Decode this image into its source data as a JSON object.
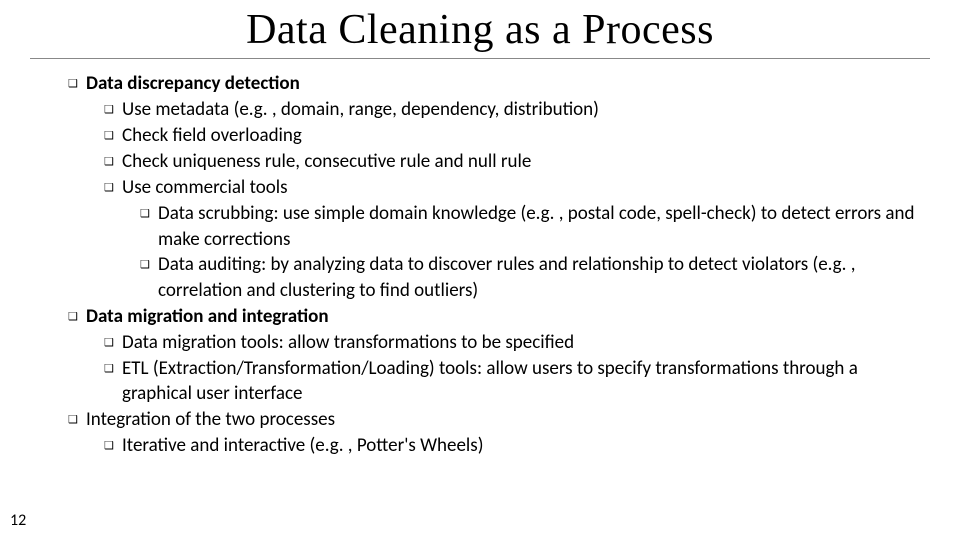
{
  "title": "Data Cleaning as a Process",
  "page_number": "12",
  "bullet_glyph": "❑",
  "items": [
    {
      "level": 1,
      "bold": true,
      "text": "Data discrepancy detection"
    },
    {
      "level": 2,
      "bold": false,
      "text": "Use metadata (e.g. , domain, range, dependency, distribution)"
    },
    {
      "level": 2,
      "bold": false,
      "text": "Check field overloading"
    },
    {
      "level": 2,
      "bold": false,
      "text": "Check uniqueness rule, consecutive rule and null rule"
    },
    {
      "level": 2,
      "bold": false,
      "text": "Use commercial tools"
    },
    {
      "level": 3,
      "bold": false,
      "text": "Data scrubbing: use simple domain knowledge (e.g. , postal code, spell-check) to detect errors and make corrections"
    },
    {
      "level": 3,
      "bold": false,
      "text": "Data auditing: by analyzing data to discover rules and relationship to detect violators (e.g. , correlation and clustering to find outliers)"
    },
    {
      "level": 1,
      "bold": true,
      "text": "Data migration and integration"
    },
    {
      "level": 2,
      "bold": false,
      "text": "Data migration tools: allow transformations to be specified"
    },
    {
      "level": 2,
      "bold": false,
      "text": "ETL (Extraction/Transformation/Loading) tools: allow users to specify transformations through a graphical user interface"
    },
    {
      "level": 1,
      "bold": false,
      "text": "Integration of the two processes"
    },
    {
      "level": 2,
      "bold": false,
      "text": "Iterative and interactive (e.g. , Potter's Wheels)"
    }
  ]
}
